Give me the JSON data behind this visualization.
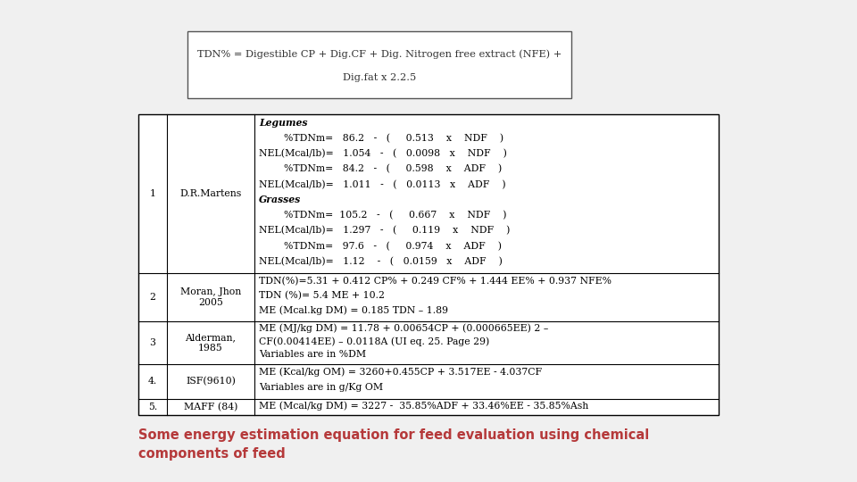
{
  "title_box_text1": "TDN% = Digestible CP + Dig.CF + Dig. Nitrogen free extract (NFE) +",
  "title_box_text2": "Dig.fat x 2.2.5",
  "caption": "Some energy estimation equation for feed evaluation using chemical\ncomponents of feed",
  "caption_color": "#b5393a",
  "rows": [
    {
      "num": "1",
      "author": "D.R.Martens",
      "content": [
        {
          "type": "subheader",
          "text": "Legumes"
        },
        {
          "type": "formula",
          "text": "        %TDNm=   86.2   -   (     0.513    x    NDF    )"
        },
        {
          "type": "formula",
          "text": "NEL(Mcal/lb)=   1.054   -   (   0.0098   x    NDF    )"
        },
        {
          "type": "formula",
          "text": "        %TDNm=   84.2   -   (     0.598    x    ADF    )"
        },
        {
          "type": "formula",
          "text": "NEL(Mcal/lb)=   1.011   -   (   0.0113   x    ADF    )"
        },
        {
          "type": "subheader",
          "text": "Grasses"
        },
        {
          "type": "formula",
          "text": "        %TDNm=  105.2   -   (     0.667    x    NDF    )"
        },
        {
          "type": "formula",
          "text": "NEL(Mcal/lb)=   1.297   -   (     0.119    x    NDF    )"
        },
        {
          "type": "formula",
          "text": "        %TDNm=   97.6   -   (     0.974    x    ADF    )"
        },
        {
          "type": "formula",
          "text": "NEL(Mcal/lb)=   1.12    -   (   0.0159   x    ADF    )"
        }
      ]
    },
    {
      "num": "2",
      "author": "Moran, Jhon\n2005",
      "content": [
        {
          "type": "formula",
          "text": "TDN(%)=5.31 + 0.412 CP% + 0.249 CF% + 1.444 EE% + 0.937 NFE%"
        },
        {
          "type": "formula",
          "text": "TDN (%)= 5.4 ME + 10.2"
        },
        {
          "type": "formula",
          "text": "ME (Mcal.kg DM) = 0.185 TDN – 1.89"
        }
      ]
    },
    {
      "num": "3",
      "author": "Alderman,\n1985",
      "content": [
        {
          "type": "formula",
          "text": "ME (MJ/kg DM) = 11.78 + 0.00654CP + (0.000665EE) 2 –"
        },
        {
          "type": "formula",
          "text": "CF(0.00414EE) – 0.0118A (UI eq. 25. Page 29)"
        },
        {
          "type": "formula",
          "text": "Variables are in %DM"
        }
      ]
    },
    {
      "num": "4.",
      "author": "ISF(9610)",
      "content": [
        {
          "type": "formula",
          "text": "ME (Kcal/kg OM) = 3260+0.455CP + 3.517EE - 4.037CF"
        },
        {
          "type": "formula",
          "text": "Variables are in g/Kg OM"
        }
      ]
    },
    {
      "num": "5.",
      "author": "MAFF (84)",
      "content": [
        {
          "type": "formula",
          "text": "ME (Mcal/kg DM) = 3227 -  35.85%ADF + 33.46%EE - 35.85%Ash"
        }
      ]
    }
  ],
  "bg_color": "#f0f0f0",
  "table_bg": "#ffffff",
  "table_border_color": "#000000",
  "text_color": "#000000",
  "font_size": 7.8,
  "title_font_size": 8.2,
  "caption_font_size": 10.5
}
